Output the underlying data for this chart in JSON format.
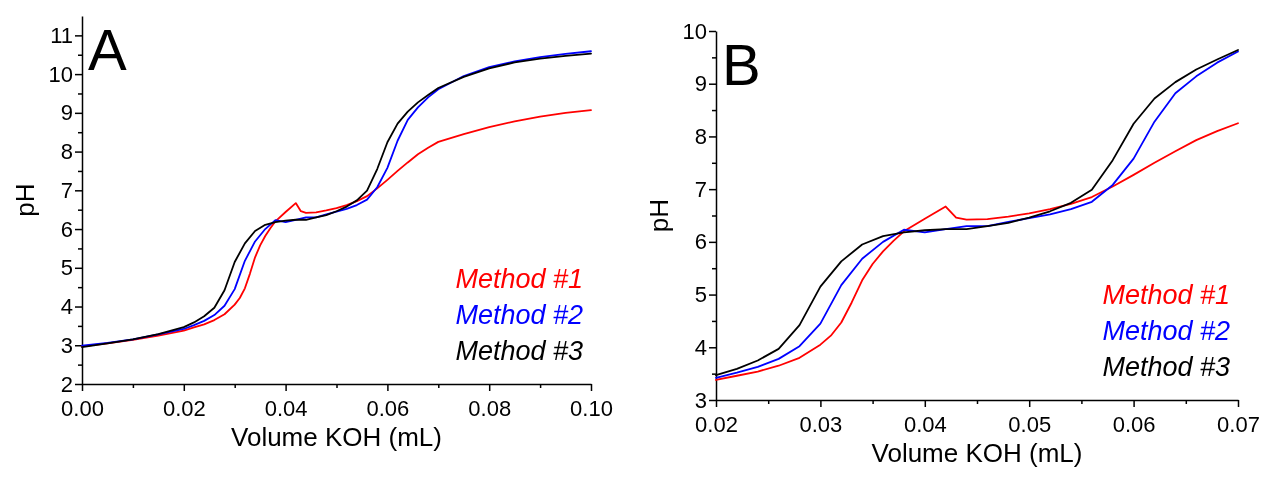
{
  "chart_data": [
    {
      "type": "line",
      "annotations": [
        "A"
      ],
      "xlabel": "Volume KOH (mL)",
      "ylabel": "pH",
      "xlim": [
        0,
        0.1
      ],
      "ylim": [
        2,
        11.5
      ],
      "xticks": [
        {
          "value": 0,
          "label": "0.00"
        },
        {
          "value": 0.01,
          "label": null
        },
        {
          "value": 0.02,
          "label": "0.02"
        },
        {
          "value": 0.03,
          "label": null
        },
        {
          "value": 0.04,
          "label": "0.04"
        },
        {
          "value": 0.05,
          "label": null
        },
        {
          "value": 0.06,
          "label": "0.06"
        },
        {
          "value": 0.07,
          "label": null
        },
        {
          "value": 0.08,
          "label": "0.08"
        },
        {
          "value": 0.09,
          "label": null
        },
        {
          "value": 0.1,
          "label": "0.10"
        }
      ],
      "yticks": [
        2,
        {
          "value": 2.5,
          "label": null
        },
        3,
        {
          "value": 3.5,
          "label": null
        },
        4,
        {
          "value": 4.5,
          "label": null
        },
        5,
        {
          "value": 5.5,
          "label": null
        },
        6,
        {
          "value": 6.5,
          "label": null
        },
        7,
        {
          "value": 7.5,
          "label": null
        },
        8,
        {
          "value": 8.5,
          "label": null
        },
        9,
        {
          "value": 9.5,
          "label": null
        },
        10,
        {
          "value": 10.5,
          "label": null
        },
        11
      ],
      "legend": "bottom right",
      "marker": "none",
      "line_style": "solid",
      "series": [
        {
          "name": "Method #1",
          "color": "#ff0000",
          "x": [
            0,
            0.005,
            0.01,
            0.015,
            0.02,
            0.022,
            0.024,
            0.026,
            0.028,
            0.03,
            0.031,
            0.032,
            0.033,
            0.034,
            0.035,
            0.036,
            0.037,
            0.038,
            0.04,
            0.042,
            0.043,
            0.044,
            0.046,
            0.048,
            0.05,
            0.052,
            0.054,
            0.056,
            0.058,
            0.06,
            0.062,
            0.064,
            0.066,
            0.068,
            0.07,
            0.075,
            0.08,
            0.085,
            0.09,
            0.095,
            0.1
          ],
          "values": [
            2.97,
            3.05,
            3.14,
            3.25,
            3.38,
            3.46,
            3.54,
            3.65,
            3.8,
            4.05,
            4.22,
            4.47,
            4.85,
            5.27,
            5.58,
            5.82,
            6.02,
            6.2,
            6.44,
            6.67,
            6.46,
            6.42,
            6.43,
            6.48,
            6.54,
            6.62,
            6.72,
            6.85,
            7.05,
            7.27,
            7.5,
            7.72,
            7.93,
            8.1,
            8.25,
            8.45,
            8.63,
            8.78,
            8.9,
            9,
            9.07
          ]
        },
        {
          "name": "Method #2",
          "color": "#0000ff",
          "x": [
            0,
            0.005,
            0.01,
            0.015,
            0.02,
            0.022,
            0.024,
            0.026,
            0.028,
            0.03,
            0.032,
            0.034,
            0.036,
            0.038,
            0.04,
            0.042,
            0.044,
            0.046,
            0.048,
            0.05,
            0.052,
            0.054,
            0.056,
            0.058,
            0.06,
            0.062,
            0.064,
            0.066,
            0.068,
            0.07,
            0.075,
            0.08,
            0.085,
            0.09,
            0.095,
            0.1
          ],
          "values": [
            2.99,
            3.06,
            3.15,
            3.28,
            3.42,
            3.52,
            3.63,
            3.78,
            4.02,
            4.45,
            5.18,
            5.68,
            6,
            6.23,
            6.18,
            6.24,
            6.3,
            6.3,
            6.38,
            6.45,
            6.52,
            6.62,
            6.76,
            7.08,
            7.58,
            8.28,
            8.82,
            9.14,
            9.4,
            9.61,
            9.95,
            10.18,
            10.33,
            10.44,
            10.52,
            10.59
          ]
        },
        {
          "name": "Method #3",
          "color": "#000000",
          "x": [
            0,
            0.005,
            0.01,
            0.015,
            0.02,
            0.022,
            0.024,
            0.026,
            0.028,
            0.03,
            0.032,
            0.034,
            0.036,
            0.038,
            0.04,
            0.042,
            0.044,
            0.046,
            0.048,
            0.05,
            0.052,
            0.054,
            0.056,
            0.058,
            0.06,
            0.062,
            0.064,
            0.066,
            0.068,
            0.07,
            0.075,
            0.08,
            0.085,
            0.09,
            0.095,
            0.1
          ],
          "values": [
            2.95,
            3.05,
            3.15,
            3.29,
            3.47,
            3.59,
            3.75,
            3.97,
            4.42,
            5.15,
            5.63,
            5.95,
            6.11,
            6.18,
            6.22,
            6.24,
            6.24,
            6.3,
            6.36,
            6.46,
            6.58,
            6.74,
            6.99,
            7.55,
            8.24,
            8.72,
            9.03,
            9.27,
            9.46,
            9.64,
            9.93,
            10.15,
            10.3,
            10.4,
            10.47,
            10.53
          ]
        }
      ]
    },
    {
      "type": "line",
      "annotations": [
        "B"
      ],
      "xlabel": "Volume KOH (mL)",
      "ylabel": "pH",
      "xlim": [
        0.02,
        0.07
      ],
      "ylim": [
        3,
        10
      ],
      "xticks": [
        0.02,
        {
          "value": 0.025,
          "label": null
        },
        0.03,
        {
          "value": 0.035,
          "label": null
        },
        0.04,
        {
          "value": 0.045,
          "label": null
        },
        0.05,
        {
          "value": 0.055,
          "label": null
        },
        0.06,
        {
          "value": 0.065,
          "label": null
        },
        0.07
      ],
      "yticks": [
        3,
        {
          "value": 3.5,
          "label": null
        },
        4,
        {
          "value": 4.5,
          "label": null
        },
        5,
        {
          "value": 5.5,
          "label": null
        },
        6,
        {
          "value": 6.5,
          "label": null
        },
        7,
        {
          "value": 7.5,
          "label": null
        },
        8,
        {
          "value": 8.5,
          "label": null
        },
        9,
        {
          "value": 9.5,
          "label": null
        },
        10
      ],
      "legend": "bottom right",
      "marker": "none",
      "line_style": "solid",
      "series": [
        {
          "name": "Method #1",
          "color": "#ff0000",
          "x": [
            0.02,
            0.022,
            0.024,
            0.026,
            0.028,
            0.03,
            0.031,
            0.032,
            0.033,
            0.034,
            0.035,
            0.036,
            0.037,
            0.038,
            0.04,
            0.042,
            0.043,
            0.044,
            0.046,
            0.048,
            0.05,
            0.052,
            0.054,
            0.056,
            0.058,
            0.06,
            0.062,
            0.064,
            0.066,
            0.068,
            0.07
          ],
          "values": [
            3.38,
            3.46,
            3.54,
            3.65,
            3.8,
            4.05,
            4.22,
            4.47,
            4.85,
            5.27,
            5.58,
            5.82,
            6.02,
            6.2,
            6.44,
            6.67,
            6.46,
            6.42,
            6.43,
            6.48,
            6.54,
            6.62,
            6.72,
            6.85,
            7.05,
            7.27,
            7.5,
            7.72,
            7.93,
            8.1,
            8.25
          ]
        },
        {
          "name": "Method #2",
          "color": "#0000ff",
          "x": [
            0.02,
            0.022,
            0.024,
            0.026,
            0.028,
            0.03,
            0.032,
            0.034,
            0.036,
            0.038,
            0.04,
            0.042,
            0.044,
            0.046,
            0.048,
            0.05,
            0.052,
            0.054,
            0.056,
            0.058,
            0.06,
            0.062,
            0.064,
            0.066,
            0.068,
            0.07
          ],
          "values": [
            3.42,
            3.52,
            3.63,
            3.78,
            4.02,
            4.45,
            5.18,
            5.68,
            6,
            6.23,
            6.18,
            6.24,
            6.3,
            6.3,
            6.38,
            6.45,
            6.52,
            6.62,
            6.76,
            7.08,
            7.58,
            8.28,
            8.82,
            9.14,
            9.4,
            9.61
          ]
        },
        {
          "name": "Method #3",
          "color": "#000000",
          "x": [
            0.02,
            0.022,
            0.024,
            0.026,
            0.028,
            0.03,
            0.032,
            0.034,
            0.036,
            0.038,
            0.04,
            0.042,
            0.044,
            0.046,
            0.048,
            0.05,
            0.052,
            0.054,
            0.056,
            0.058,
            0.06,
            0.062,
            0.064,
            0.066,
            0.068,
            0.07
          ],
          "values": [
            3.47,
            3.59,
            3.75,
            3.97,
            4.42,
            5.15,
            5.63,
            5.95,
            6.11,
            6.18,
            6.22,
            6.24,
            6.24,
            6.3,
            6.36,
            6.46,
            6.58,
            6.74,
            6.99,
            7.55,
            8.24,
            8.72,
            9.03,
            9.27,
            9.46,
            9.64
          ]
        }
      ]
    }
  ]
}
